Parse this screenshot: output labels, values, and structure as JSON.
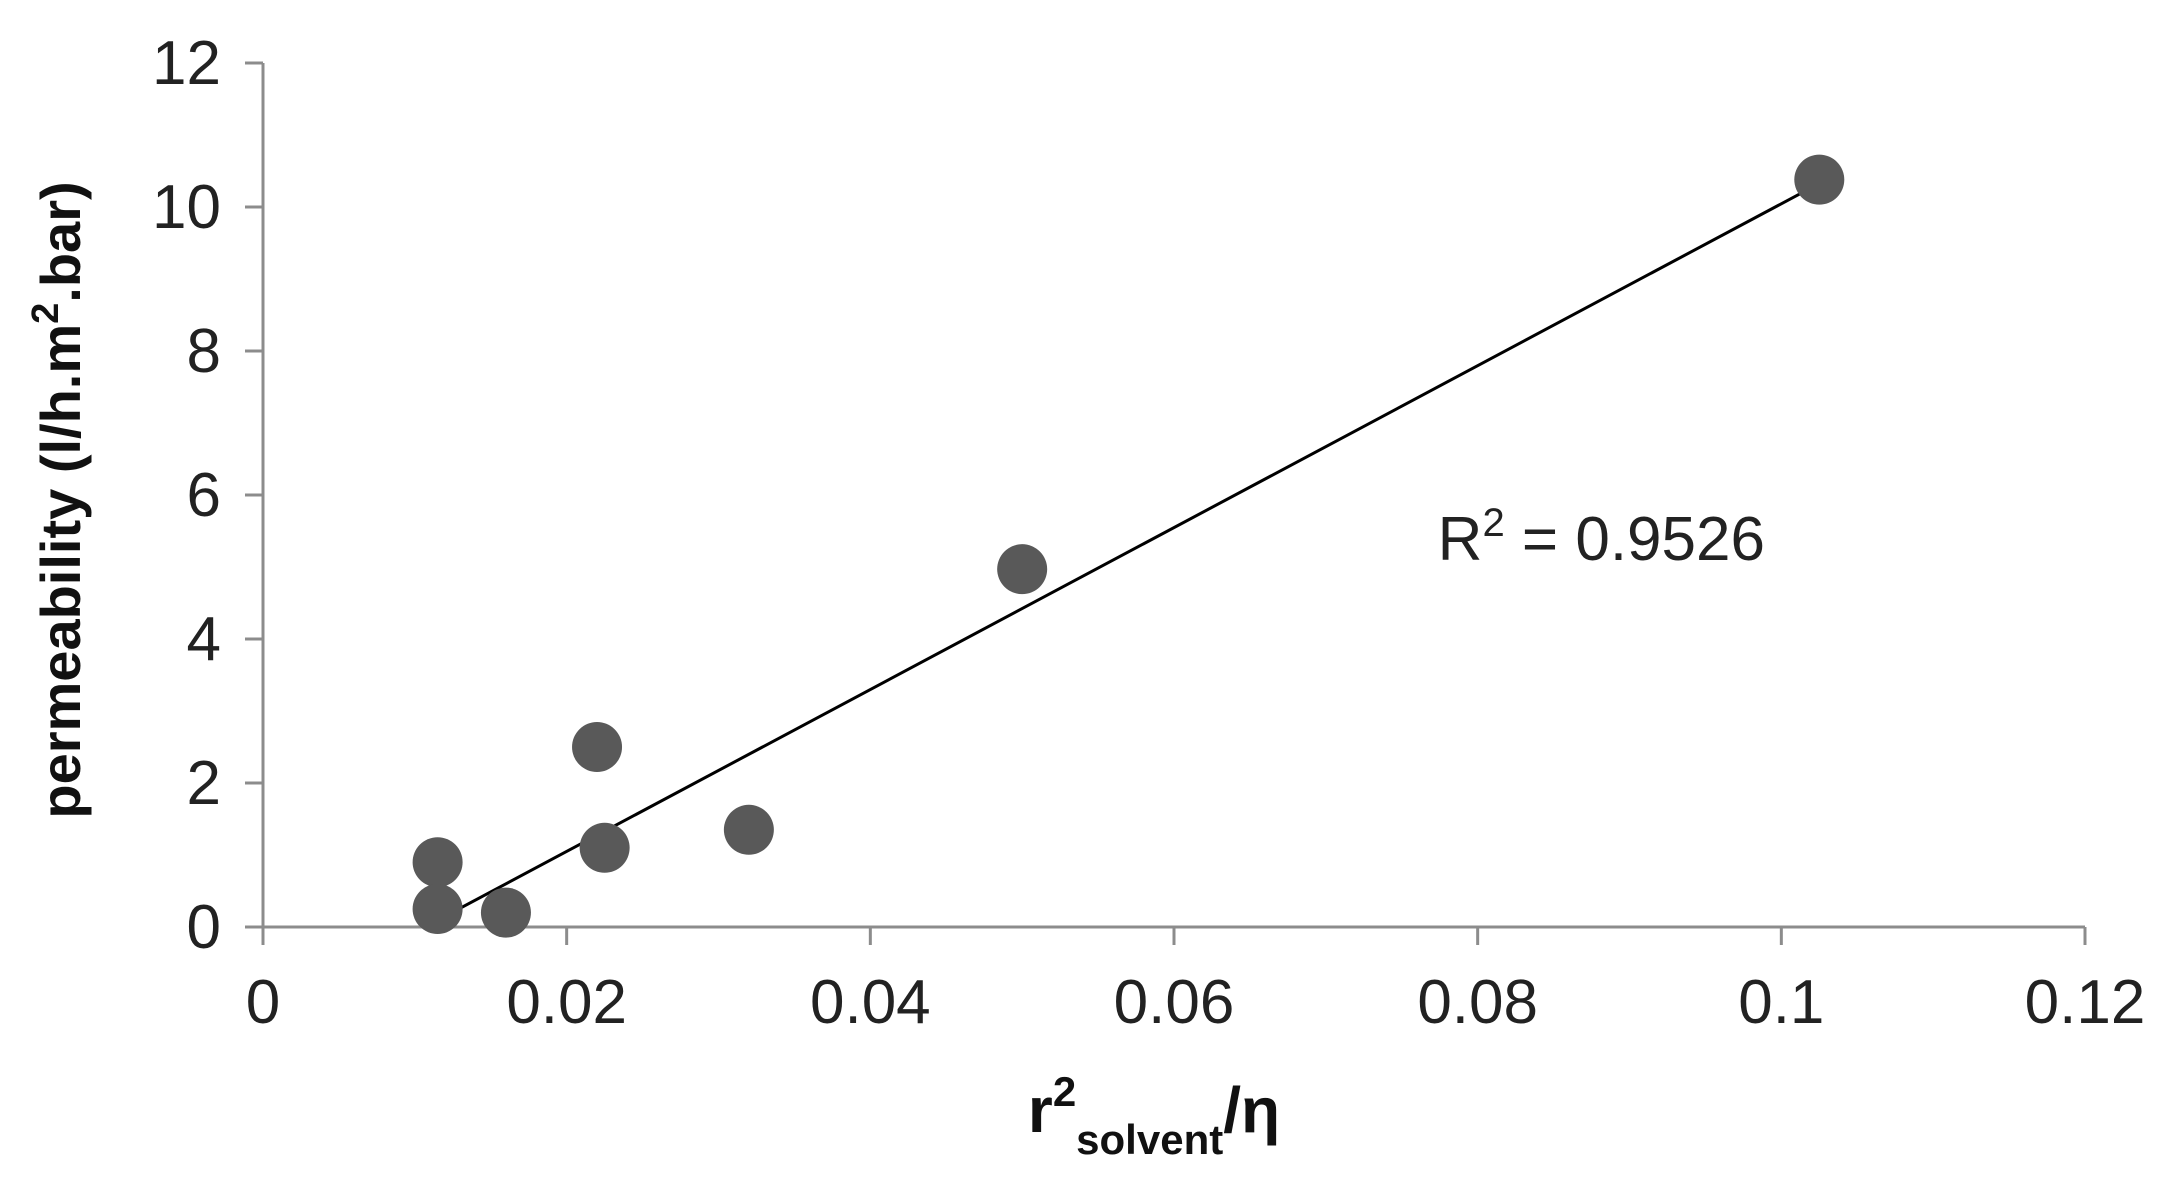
{
  "chart_data": {
    "type": "scatter",
    "xlabel": {
      "base": "r",
      "sup": "2",
      "sub": "solvent",
      "tail": "/η"
    },
    "ylabel": {
      "pre": "permeability (l/h.m",
      "sup": "2",
      "post": ".bar)"
    },
    "xlim": [
      0,
      0.12
    ],
    "ylim": [
      0,
      12
    ],
    "xticks": [
      0,
      0.02,
      0.04,
      0.06,
      0.08,
      0.1,
      0.12
    ],
    "xtick_labels": [
      "0",
      "0.02",
      "0.04",
      "0.06",
      "0.08",
      "0.1",
      "0.12"
    ],
    "yticks": [
      0,
      2,
      4,
      6,
      8,
      10,
      12
    ],
    "ytick_labels": [
      "0",
      "2",
      "4",
      "6",
      "8",
      "10",
      "12"
    ],
    "grid": false,
    "legend": "none",
    "marker_color": "#595959",
    "line_color": "#000000",
    "series": [
      {
        "points": [
          {
            "x": 0.0115,
            "y": 0.9
          },
          {
            "x": 0.0115,
            "y": 0.25
          },
          {
            "x": 0.016,
            "y": 0.2
          },
          {
            "x": 0.022,
            "y": 2.5
          },
          {
            "x": 0.0225,
            "y": 1.1
          },
          {
            "x": 0.032,
            "y": 1.35
          },
          {
            "x": 0.05,
            "y": 4.97
          },
          {
            "x": 0.1025,
            "y": 10.38
          }
        ]
      }
    ],
    "trendline": {
      "type": "linear",
      "x_start": 0.012,
      "y_start": 0.15,
      "x_end": 0.102,
      "y_end": 10.27
    },
    "annotation": {
      "base": "R",
      "sup": "2",
      "rest": " = 0.9526",
      "x": 0.08,
      "y": 5.1
    }
  }
}
